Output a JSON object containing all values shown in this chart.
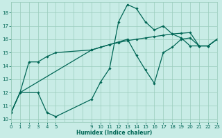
{
  "xlabel": "Humidex (Indice chaleur)",
  "background_color": "#c8ece6",
  "grid_color": "#99ccbb",
  "line_color": "#006655",
  "xlim": [
    0,
    23
  ],
  "ylim": [
    9.8,
    18.8
  ],
  "xtick_positions": [
    0,
    1,
    2,
    3,
    4,
    5,
    9,
    10,
    11,
    12,
    13,
    14,
    15,
    16,
    17,
    18,
    19,
    20,
    21,
    22,
    23
  ],
  "xtick_labels": [
    "0",
    "1",
    "2",
    "3",
    "4",
    "5",
    "9",
    "10",
    "11",
    "12",
    "13",
    "14",
    "15",
    "16",
    "17",
    "18",
    "19",
    "20",
    "21",
    "22",
    "23"
  ],
  "ytick_positions": [
    10,
    11,
    12,
    13,
    14,
    15,
    16,
    17,
    18
  ],
  "ytick_labels": [
    "10",
    "11",
    "12",
    "13",
    "14",
    "15",
    "16",
    "17",
    "18"
  ],
  "curve1_x": [
    0,
    1,
    3,
    4,
    5,
    9,
    10,
    11,
    12,
    13,
    14,
    15,
    16,
    17,
    18,
    19,
    20,
    21,
    22,
    23
  ],
  "curve1_y": [
    10.5,
    12.0,
    12.0,
    10.5,
    10.2,
    11.5,
    12.8,
    13.8,
    17.3,
    18.6,
    18.3,
    17.3,
    16.7,
    17.0,
    16.4,
    16.1,
    15.5,
    15.5,
    15.5,
    16.0
  ],
  "curve2_x": [
    0,
    1,
    2,
    3,
    4,
    5,
    9,
    10,
    11,
    12,
    13,
    14,
    15,
    16,
    17,
    18,
    19,
    20,
    21,
    22,
    23
  ],
  "curve2_y": [
    10.5,
    12.0,
    14.3,
    14.3,
    14.7,
    15.0,
    15.2,
    15.4,
    15.6,
    15.75,
    15.9,
    16.0,
    16.1,
    16.2,
    16.3,
    16.4,
    16.45,
    16.5,
    15.5,
    15.5,
    16.0
  ],
  "curve3_x": [
    0,
    1,
    9,
    13,
    14,
    15,
    16,
    17,
    18,
    19,
    20,
    21,
    22,
    23
  ],
  "curve3_y": [
    10.5,
    12.0,
    15.2,
    16.0,
    14.8,
    13.7,
    12.7,
    15.0,
    15.4,
    16.0,
    16.1,
    15.5,
    15.5,
    16.0
  ],
  "xlabel_fontsize": 5.5,
  "xlabel_color": "#006655",
  "tick_labelsize": 5.0,
  "linewidth": 0.9,
  "markersize": 1.8
}
